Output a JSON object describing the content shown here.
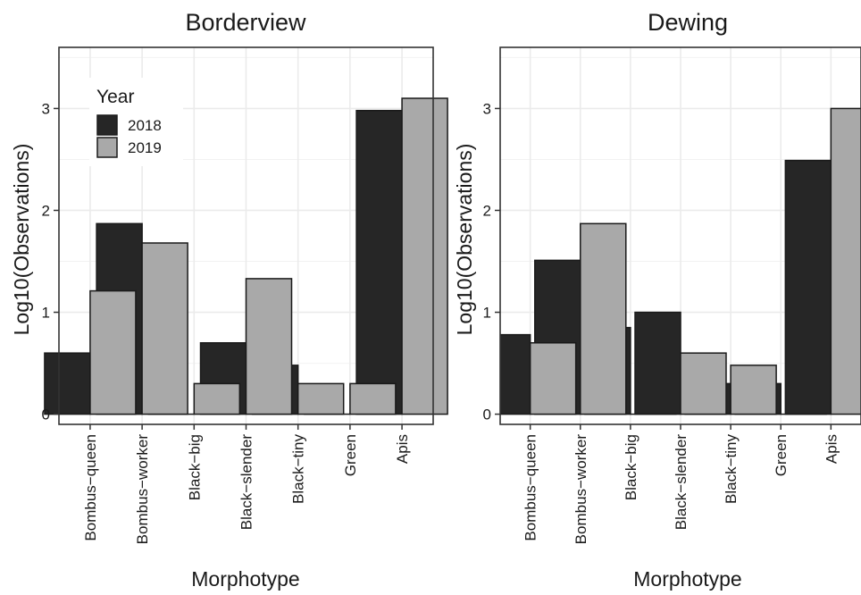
{
  "chart_data": [
    {
      "type": "bar",
      "title": "Borderview",
      "xlabel": "Morphotype",
      "ylabel": "Log10(Observations)",
      "categories": [
        "Bombus-queen",
        "Bombus-worker",
        "Black-big",
        "Black-slender",
        "Black-tiny",
        "Green",
        "Apis"
      ],
      "series": [
        {
          "name": "2018",
          "color": "#262626",
          "values": [
            0.6,
            1.87,
            0.0,
            0.7,
            0.48,
            0.0,
            2.98
          ]
        },
        {
          "name": "2019",
          "color": "#a9a9a9",
          "values": [
            1.21,
            1.68,
            0.3,
            1.33,
            0.3,
            0.3,
            3.1
          ]
        }
      ],
      "ylim": [
        -0.1,
        3.6
      ],
      "yticks": [
        0,
        1,
        2,
        3
      ],
      "grid": true,
      "legend": {
        "title": "Year",
        "position": "top-left"
      }
    },
    {
      "type": "bar",
      "title": "Dewing",
      "xlabel": "Morphotype",
      "ylabel": "Log10(Observations)",
      "categories": [
        "Bombus-queen",
        "Bombus-worker",
        "Black-big",
        "Black-slender",
        "Black-tiny",
        "Green",
        "Apis"
      ],
      "series": [
        {
          "name": "2018",
          "color": "#262626",
          "values": [
            0.78,
            1.51,
            0.85,
            1.0,
            0.3,
            0.3,
            2.49
          ]
        },
        {
          "name": "2019",
          "color": "#a9a9a9",
          "values": [
            0.7,
            1.87,
            0.0,
            0.6,
            0.48,
            0.0,
            3.0
          ]
        }
      ],
      "ylim": [
        -0.1,
        3.6
      ],
      "yticks": [
        0,
        1,
        2,
        3
      ],
      "grid": true
    }
  ]
}
